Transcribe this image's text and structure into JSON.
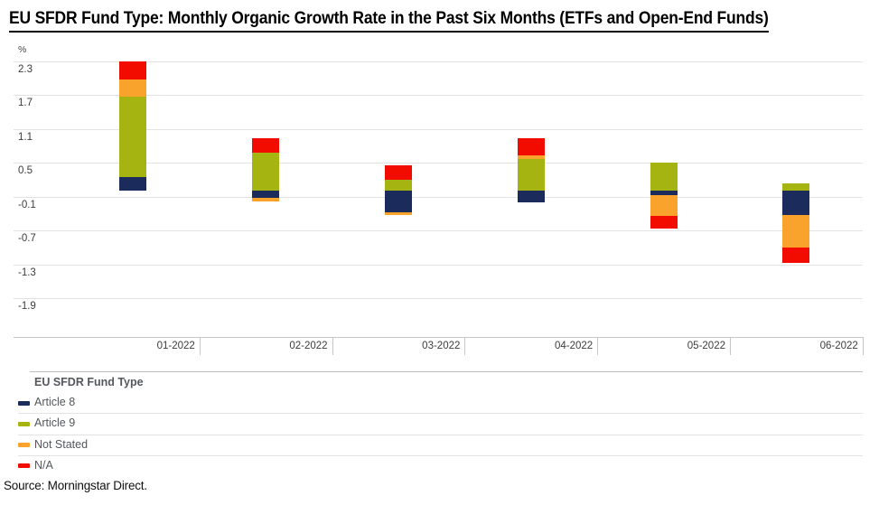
{
  "title": "EU SFDR Fund Type: Monthly Organic Growth Rate in the Past Six Months (ETFs and Open-End Funds)",
  "source": "Source: Morningstar Direct.",
  "chart_data": {
    "type": "bar",
    "stacked": true,
    "title": "EU SFDR Fund Type: Monthly Organic Growth Rate in the Past Six Months (ETFs and Open-End Funds)",
    "unit_label": "%",
    "xlabel": "",
    "ylabel": "%",
    "grid": true,
    "legend_position": "bottom",
    "legend_title": "EU SFDR Fund Type",
    "categories": [
      "01-2022",
      "02-2022",
      "03-2022",
      "04-2022",
      "05-2022",
      "06-2022"
    ],
    "series": [
      {
        "name": "Article 8",
        "color": "#1a2b5c",
        "values": [
          0.24,
          -0.12,
          -0.38,
          -0.21,
          -0.08,
          -0.43
        ]
      },
      {
        "name": "Article 9",
        "color": "#a6b412",
        "values": [
          1.43,
          0.67,
          0.19,
          0.57,
          0.5,
          0.14
        ]
      },
      {
        "name": "Not Stated",
        "color": "#faa32c",
        "values": [
          0.3,
          -0.07,
          -0.05,
          0.06,
          -0.37,
          -0.57
        ]
      },
      {
        "name": "N/A",
        "color": "#f20c00",
        "values": [
          0.33,
          0.27,
          0.27,
          0.31,
          -0.21,
          -0.28
        ]
      }
    ],
    "y_ticks": [
      2.3,
      1.7,
      1.1,
      0.5,
      -0.1,
      -0.7,
      -1.3,
      -1.9
    ],
    "ylim": [
      -2.59,
      2.3
    ]
  }
}
